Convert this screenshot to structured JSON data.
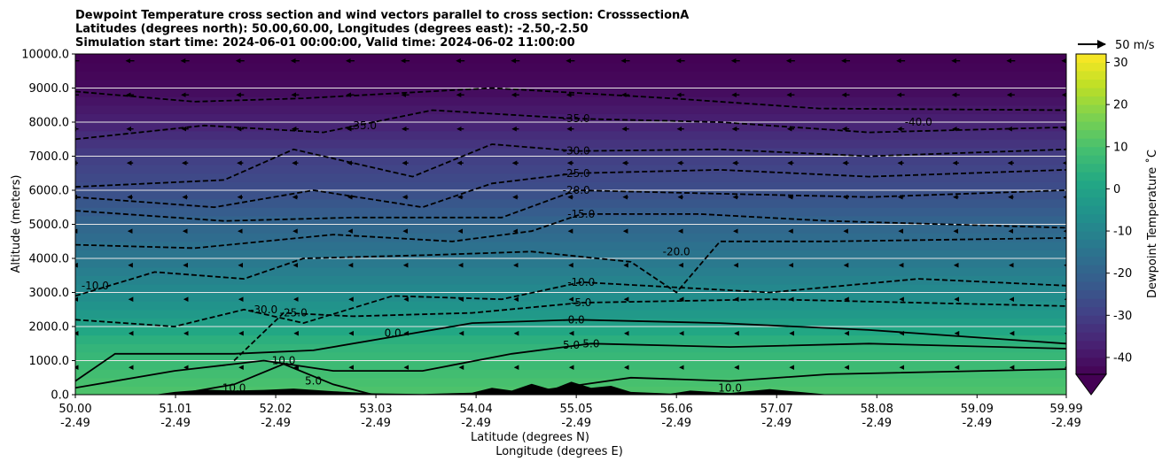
{
  "chart_data": {
    "type": "heatmap",
    "title_lines": [
      "Dewpoint Temperature cross section and wind vectors parallel to cross section: CrosssectionA",
      "Latitudes (degrees north): 50.00,60.00, Longitudes (degrees east): -2.50,-2.50",
      "Simulation start time: 2024-06-01 00:00:00, Valid time: 2024-06-02 11:00:00"
    ],
    "xlabel_lines": [
      "Latitude (degrees N)",
      "Longitude (degrees E)"
    ],
    "ylabel": "Altitude (meters)",
    "colorbar_label": "Dewpoint Temperature $^\\circ$C",
    "colorbar_label_display": "Dewpoint Temperature ˚C",
    "quiver_key": "50 m/s",
    "x_ticks": [
      {
        "lat": "50.00",
        "lon": "-2.49"
      },
      {
        "lat": "51.01",
        "lon": "-2.49"
      },
      {
        "lat": "52.02",
        "lon": "-2.49"
      },
      {
        "lat": "53.03",
        "lon": "-2.49"
      },
      {
        "lat": "54.04",
        "lon": "-2.49"
      },
      {
        "lat": "55.05",
        "lon": "-2.49"
      },
      {
        "lat": "56.06",
        "lon": "-2.49"
      },
      {
        "lat": "57.07",
        "lon": "-2.49"
      },
      {
        "lat": "58.08",
        "lon": "-2.49"
      },
      {
        "lat": "59.09",
        "lon": "-2.49"
      },
      {
        "lat": "59.99",
        "lon": "-2.49"
      }
    ],
    "xlim": [
      50.0,
      59.99
    ],
    "y_ticks": [
      "0.0",
      "1000.0",
      "2000.0",
      "3000.0",
      "4000.0",
      "5000.0",
      "6000.0",
      "7000.0",
      "8000.0",
      "9000.0",
      "10000.0"
    ],
    "ylim": [
      0,
      10000
    ],
    "colorbar_ticks": [
      "-40",
      "-30",
      "-20",
      "-10",
      "0",
      "10",
      "20",
      "30"
    ],
    "colorbar_range": [
      -44,
      32
    ],
    "grid": "horizontal",
    "colormap": "viridis",
    "contour_labels": [
      {
        "text": "-40.0",
        "lat": 58.5,
        "alt": 8000
      },
      {
        "text": "-35.0",
        "lat": 52.9,
        "alt": 7900
      },
      {
        "text": "-35.0",
        "lat": 55.05,
        "alt": 8100
      },
      {
        "text": "-30.0",
        "lat": 55.05,
        "alt": 7150
      },
      {
        "text": "-25.0",
        "lat": 55.05,
        "alt": 6500
      },
      {
        "text": "-20.0",
        "lat": 55.05,
        "alt": 6000
      },
      {
        "text": "-15.0",
        "lat": 55.1,
        "alt": 5300
      },
      {
        "text": "-20.0",
        "lat": 56.06,
        "alt": 4200
      },
      {
        "text": "-10.0",
        "lat": 50.2,
        "alt": 3200
      },
      {
        "text": "-30.0",
        "lat": 51.9,
        "alt": 2500
      },
      {
        "text": "-25.0",
        "lat": 52.2,
        "alt": 2400
      },
      {
        "text": "-10.0",
        "lat": 55.1,
        "alt": 3300
      },
      {
        "text": "-5.0",
        "lat": 55.1,
        "alt": 2700
      },
      {
        "text": "0.0",
        "lat": 53.2,
        "alt": 1800
      },
      {
        "text": "0.0",
        "lat": 55.05,
        "alt": 2200
      },
      {
        "text": "5.0",
        "lat": 55.0,
        "alt": 1450
      },
      {
        "text": "5.0",
        "lat": 55.2,
        "alt": 1500
      },
      {
        "text": "10.0",
        "lat": 52.1,
        "alt": 1000
      },
      {
        "text": "10.0",
        "lat": 51.6,
        "alt": 200
      },
      {
        "text": "5.0",
        "lat": 52.4,
        "alt": 400
      },
      {
        "text": "10.0",
        "lat": 56.6,
        "alt": 200
      }
    ],
    "colors": {
      "contour_line": "#000000",
      "terrain": "#000000",
      "grid": "#e6e6e6"
    }
  }
}
